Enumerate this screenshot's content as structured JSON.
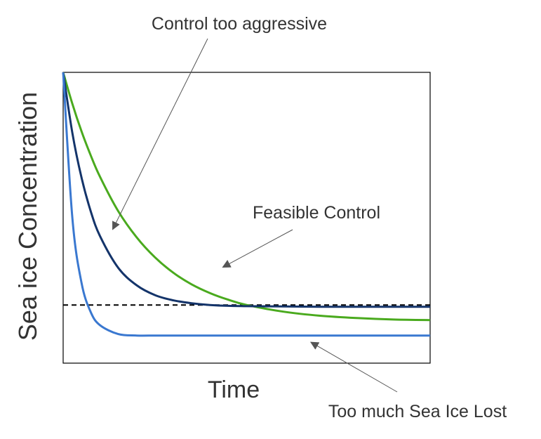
{
  "chart_data": {
    "type": "line",
    "xlabel": "Time",
    "ylabel": "Sea ice Concentration",
    "xlim": [
      0,
      10
    ],
    "ylim": [
      0,
      1
    ],
    "grid": false,
    "x": [
      0,
      0.25,
      0.5,
      0.75,
      1,
      1.5,
      2,
      2.5,
      3,
      3.5,
      4,
      4.5,
      5,
      6,
      7,
      8,
      9,
      10
    ],
    "series": [
      {
        "key": "green",
        "color": "#4aaa1e",
        "values": [
          1.0,
          0.892,
          0.797,
          0.715,
          0.642,
          0.523,
          0.433,
          0.364,
          0.311,
          0.271,
          0.241,
          0.218,
          0.2,
          0.177,
          0.163,
          0.155,
          0.15,
          0.148
        ]
      },
      {
        "key": "navy",
        "color": "#14346a",
        "values": [
          1.0,
          0.792,
          0.638,
          0.523,
          0.438,
          0.328,
          0.268,
          0.234,
          0.216,
          0.206,
          0.2,
          0.197,
          0.196,
          0.195,
          0.194,
          0.194,
          0.194,
          0.194
        ]
      },
      {
        "key": "blue",
        "color": "#3a78d0",
        "values": [
          1.0,
          0.5,
          0.276,
          0.176,
          0.131,
          0.1,
          0.095,
          0.095,
          0.095,
          0.095,
          0.095,
          0.095,
          0.095,
          0.095,
          0.095,
          0.095,
          0.095,
          0.095
        ]
      }
    ],
    "threshold": {
      "y": 0.2,
      "style": "dashed",
      "color": "#000000"
    },
    "annotations": [
      {
        "key": "aggressive",
        "text": "Control too aggressive",
        "target": [
          1.35,
          0.46
        ]
      },
      {
        "key": "feasible",
        "text": "Feasible Control",
        "target": [
          4.35,
          0.33
        ]
      },
      {
        "key": "lost",
        "text": "Too much Sea Ice Lost",
        "target": [
          6.75,
          0.072
        ]
      }
    ]
  }
}
